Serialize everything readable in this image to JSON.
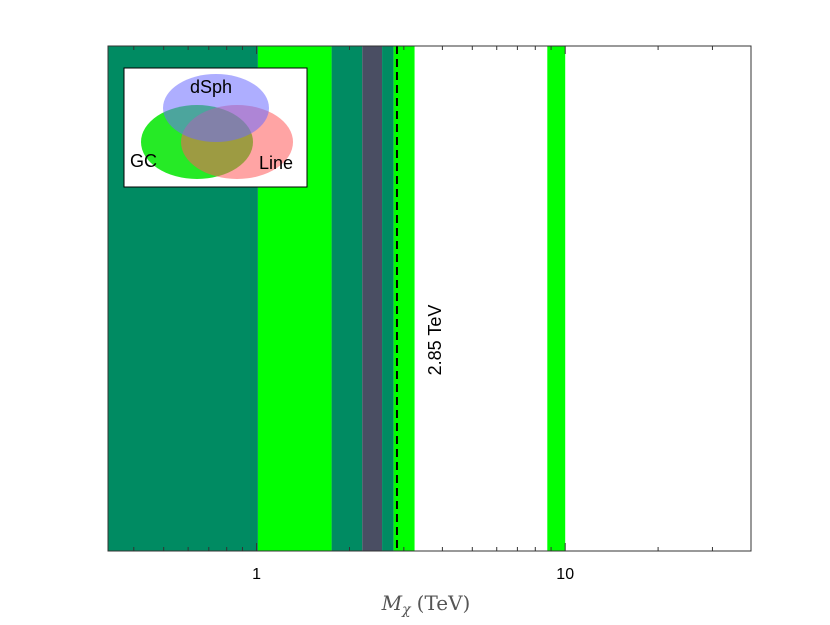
{
  "chart_data": {
    "type": "area",
    "xscale": "log",
    "xlim": [
      0.33,
      40
    ],
    "xlabel": "M_χ (TeV)",
    "xlabel_main": "M",
    "xlabel_sub": "χ",
    "xlabel_unit": "(TeV)",
    "xticks": [
      1,
      10
    ],
    "xtick_labels": [
      "1",
      "10"
    ],
    "grid": false,
    "colors": {
      "gc_only": "#00ff00",
      "gc_dsph": "#008b62",
      "gc_dsph_line": "#4a4e63",
      "boundary_line": "#000000"
    },
    "bands": [
      {
        "category": "GC+dSph",
        "x_start": 0.33,
        "x_end": 1.01,
        "color": "#008b62"
      },
      {
        "category": "GC",
        "x_start": 1.01,
        "x_end": 1.75,
        "color": "#00ff00"
      },
      {
        "category": "GC+dSph",
        "x_start": 1.75,
        "x_end": 2.2,
        "color": "#008b62"
      },
      {
        "category": "GC+dSph+Line",
        "x_start": 2.2,
        "x_end": 2.55,
        "color": "#4a4e63"
      },
      {
        "category": "GC+dSph",
        "x_start": 2.55,
        "x_end": 2.78,
        "color": "#008b62"
      },
      {
        "category": "GC",
        "x_start": 2.78,
        "x_end": 3.25,
        "color": "#00ff00"
      },
      {
        "category": "GC",
        "x_start": 8.75,
        "x_end": 10.0,
        "color": "#00ff00"
      }
    ],
    "vline": {
      "x": 2.85,
      "label": "2.85 TeV",
      "style": "dashed"
    },
    "legend": {
      "placement": "top-left",
      "type": "venn",
      "sets": [
        {
          "label": "dSph",
          "color": "#6b6bff"
        },
        {
          "label": "GC",
          "color": "#00e600"
        },
        {
          "label": "Line",
          "color": "#ff5a5a"
        }
      ]
    }
  }
}
